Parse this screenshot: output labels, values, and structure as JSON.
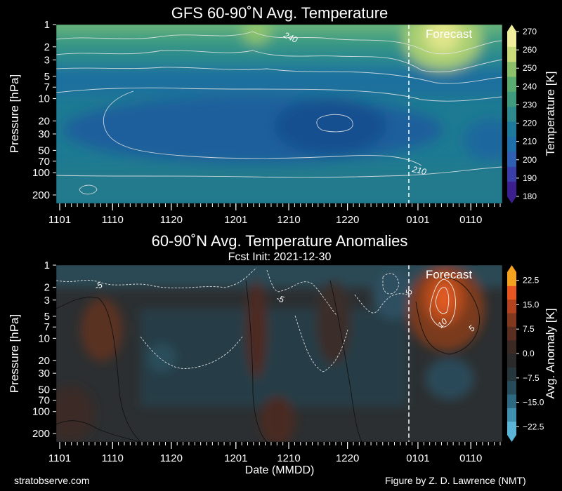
{
  "charts": [
    {
      "type": "heatmap",
      "title": "GFS 60-90˚N Avg. Temperature",
      "subtitle": "",
      "ylabel": "Pressure [hPa]",
      "xlabel": "",
      "yscale": "log",
      "yticks": [
        "1",
        "2",
        "3",
        "5",
        "7",
        "10",
        "20",
        "30",
        "50",
        "70",
        "100",
        "200"
      ],
      "xticks": [
        "1101",
        "1110",
        "1120",
        "1201",
        "1210",
        "1220",
        "0101",
        "0110"
      ],
      "forecast_label": "Forecast",
      "colorbar": {
        "label": "Temperature [K]",
        "ticks": [
          "180",
          "190",
          "200",
          "210",
          "220",
          "230",
          "240",
          "250",
          "260",
          "270"
        ],
        "range": [
          180,
          270
        ],
        "colors": [
          "#3b1f8f",
          "#3a3ea8",
          "#2f5fb3",
          "#1f6fa8",
          "#1e7a9c",
          "#2e8a8c",
          "#3f9a7e",
          "#5aab6f",
          "#8cc06a",
          "#c8da7a",
          "#f0ee9c"
        ]
      },
      "contour_labels": [
        "240",
        "210"
      ]
    },
    {
      "type": "heatmap",
      "title": "60-90˚N Avg. Temperature Anomalies",
      "subtitle": "Fcst Init: 2021-12-30",
      "ylabel": "Pressure [hPa]",
      "xlabel": "Date (MMDD)",
      "yscale": "log",
      "yticks": [
        "1",
        "2",
        "3",
        "5",
        "7",
        "10",
        "20",
        "30",
        "50",
        "70",
        "100",
        "200"
      ],
      "xticks": [
        "1101",
        "1110",
        "1120",
        "1201",
        "1210",
        "1220",
        "0101",
        "0110"
      ],
      "forecast_label": "Forecast",
      "colorbar": {
        "label": "Avg. Anomaly [K]",
        "ticks": [
          "22.5",
          "15.0",
          "7.5",
          "0.0",
          "−7.5",
          "−15.0",
          "−22.5"
        ],
        "range": [
          -25,
          25
        ],
        "colors": [
          "#5ab5d8",
          "#3f8fae",
          "#2d6a82",
          "#264b5a",
          "#25363d",
          "#2a2a2a",
          "#3b2a24",
          "#5a2e20",
          "#82371f",
          "#b5421e",
          "#e8571f",
          "#f5a21f"
        ]
      },
      "contour_labels": [
        "-5",
        "-5",
        "-5",
        "10",
        "5"
      ]
    }
  ],
  "footer": {
    "left": "stratobserve.com",
    "right": "Figure by Z. D. Lawrence (NMT)"
  }
}
